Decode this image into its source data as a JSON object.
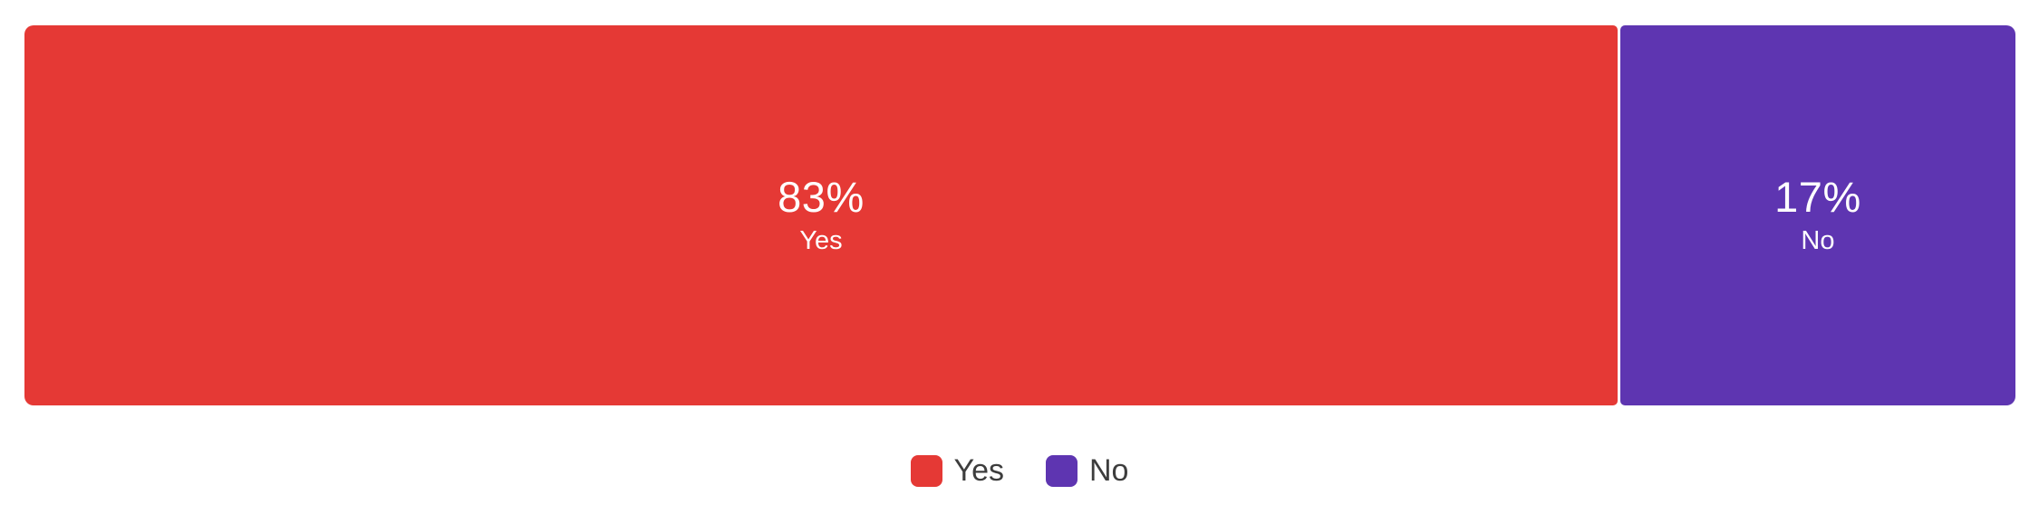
{
  "chart_data": {
    "type": "bar",
    "subtype": "horizontal-stacked-percentage",
    "title": "",
    "categories": [
      "Yes",
      "No"
    ],
    "values": [
      83,
      17
    ],
    "unit": "%",
    "xlim": [
      0,
      100
    ],
    "grid": false,
    "axes_visible": false,
    "background_color": "#FFFFFF",
    "segments": [
      {
        "label": "Yes",
        "value": 83,
        "display_value": "83%",
        "color": "#E53935",
        "text_color": "#FFFFFF"
      },
      {
        "label": "No",
        "value": 17,
        "display_value": "17%",
        "color": "#5E35B1",
        "text_color": "#FFFFFF"
      }
    ],
    "legend": {
      "position": "bottom",
      "text_color": "#3D3D3D",
      "items": [
        {
          "label": "Yes",
          "color": "#E53935"
        },
        {
          "label": "No",
          "color": "#5E35B1"
        }
      ]
    }
  }
}
